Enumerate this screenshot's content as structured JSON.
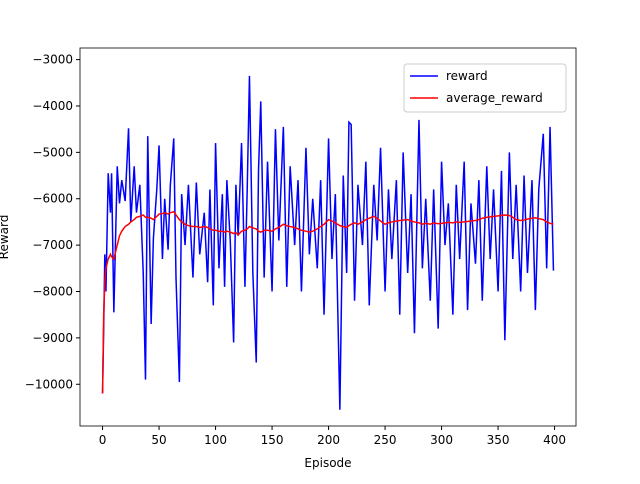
{
  "chart_data": {
    "type": "line",
    "x_label": "Episode",
    "y_label": "Reward",
    "x": [
      0,
      1,
      2,
      3,
      5,
      7,
      8,
      10,
      13,
      15,
      17,
      20,
      23,
      25,
      28,
      30,
      33,
      36,
      38,
      40,
      43,
      45,
      48,
      50,
      53,
      55,
      58,
      60,
      63,
      65,
      68,
      70,
      73,
      76,
      80,
      83,
      86,
      90,
      93,
      95,
      98,
      100,
      103,
      106,
      108,
      110,
      113,
      116,
      118,
      120,
      123,
      126,
      128,
      130,
      133,
      136,
      138,
      140,
      143,
      146,
      150,
      153,
      156,
      160,
      163,
      166,
      170,
      173,
      176,
      180,
      183,
      186,
      190,
      193,
      196,
      200,
      203,
      206,
      210,
      213,
      216,
      218,
      220,
      223,
      226,
      230,
      233,
      236,
      240,
      243,
      246,
      250,
      253,
      256,
      260,
      263,
      266,
      270,
      273,
      276,
      280,
      283,
      286,
      290,
      293,
      297,
      300,
      303,
      306,
      310,
      313,
      316,
      320,
      323,
      326,
      330,
      333,
      336,
      340,
      343,
      346,
      350,
      353,
      356,
      360,
      363,
      366,
      370,
      373,
      376,
      380,
      383,
      386,
      390,
      393,
      396,
      399
    ],
    "series": [
      {
        "name": "reward",
        "color": "#0000ff",
        "values": [
          -10200,
          -8800,
          -7200,
          -8000,
          -5450,
          -6300,
          -5450,
          -8450,
          -5300,
          -6100,
          -5600,
          -6050,
          -4480,
          -6500,
          -5300,
          -6300,
          -5700,
          -7600,
          -9900,
          -4650,
          -8700,
          -6850,
          -5800,
          -4850,
          -7300,
          -6000,
          -7100,
          -5700,
          -4700,
          -7700,
          -9950,
          -5900,
          -7000,
          -5700,
          -7700,
          -5650,
          -7200,
          -6300,
          -7800,
          -5800,
          -8300,
          -4800,
          -7500,
          -5900,
          -7900,
          -5600,
          -6900,
          -9100,
          -5700,
          -6800,
          -4800,
          -7900,
          -5800,
          -3350,
          -7600,
          -9530,
          -5400,
          -3900,
          -7700,
          -5200,
          -8000,
          -4500,
          -6900,
          -4450,
          -7900,
          -5300,
          -7000,
          -5600,
          -8000,
          -4900,
          -7200,
          -6000,
          -7500,
          -5600,
          -8500,
          -4700,
          -7300,
          -5900,
          -10550,
          -5500,
          -7600,
          -4350,
          -4400,
          -8200,
          -5700,
          -7000,
          -5200,
          -8300,
          -5700,
          -6900,
          -4900,
          -8000,
          -5800,
          -7300,
          -5600,
          -8500,
          -5000,
          -7600,
          -5900,
          -8900,
          -4300,
          -7500,
          -6000,
          -8200,
          -5800,
          -8800,
          -5200,
          -7000,
          -6100,
          -8500,
          -5700,
          -7300,
          -5200,
          -8400,
          -6100,
          -7400,
          -5600,
          -8200,
          -5300,
          -7300,
          -5800,
          -8000,
          -5400,
          -9050,
          -5000,
          -7300,
          -5700,
          -8000,
          -5500,
          -7600,
          -5600,
          -8400,
          -5800,
          -4600,
          -7500,
          -4450,
          -7550
        ]
      },
      {
        "name": "average_reward",
        "color": "#ff0000",
        "values": [
          -10200,
          -8500,
          -7800,
          -7500,
          -7300,
          -7200,
          -7250,
          -7300,
          -7000,
          -6800,
          -6700,
          -6600,
          -6550,
          -6500,
          -6450,
          -6400,
          -6380,
          -6350,
          -6400,
          -6400,
          -6420,
          -6450,
          -6380,
          -6330,
          -6320,
          -6300,
          -6330,
          -6300,
          -6280,
          -6350,
          -6450,
          -6500,
          -6550,
          -6580,
          -6600,
          -6600,
          -6620,
          -6600,
          -6620,
          -6650,
          -6680,
          -6680,
          -6700,
          -6700,
          -6720,
          -6700,
          -6720,
          -6750,
          -6730,
          -6780,
          -6700,
          -6680,
          -6650,
          -6600,
          -6630,
          -6650,
          -6700,
          -6720,
          -6680,
          -6680,
          -6700,
          -6650,
          -6620,
          -6550,
          -6580,
          -6600,
          -6620,
          -6650,
          -6680,
          -6700,
          -6720,
          -6700,
          -6650,
          -6600,
          -6550,
          -6450,
          -6480,
          -6520,
          -6580,
          -6600,
          -6620,
          -6580,
          -6550,
          -6520,
          -6550,
          -6500,
          -6450,
          -6420,
          -6380,
          -6420,
          -6480,
          -6550,
          -6520,
          -6500,
          -6480,
          -6470,
          -6460,
          -6450,
          -6480,
          -6500,
          -6520,
          -6550,
          -6530,
          -6550,
          -6520,
          -6540,
          -6530,
          -6520,
          -6510,
          -6520,
          -6500,
          -6510,
          -6500,
          -6490,
          -6480,
          -6470,
          -6450,
          -6420,
          -6400,
          -6390,
          -6380,
          -6370,
          -6360,
          -6350,
          -6360,
          -6400,
          -6450,
          -6470,
          -6460,
          -6440,
          -6420,
          -6410,
          -6430,
          -6450,
          -6500,
          -6530,
          -6550
        ]
      }
    ],
    "xlim": [
      -19.95,
      418.95
    ],
    "ylim": [
      -10900,
      -2750
    ],
    "xticks": [
      0,
      50,
      100,
      150,
      200,
      250,
      300,
      350,
      400
    ],
    "yticks": [
      {
        "value": -10000,
        "label": "−10000"
      },
      {
        "value": -9000,
        "label": "−9000"
      },
      {
        "value": -8000,
        "label": "−8000"
      },
      {
        "value": -7000,
        "label": "−7000"
      },
      {
        "value": -6000,
        "label": "−6000"
      },
      {
        "value": -5000,
        "label": "−5000"
      },
      {
        "value": -4000,
        "label": "−4000"
      },
      {
        "value": -3000,
        "label": "−3000"
      }
    ],
    "legend": "upper right"
  }
}
